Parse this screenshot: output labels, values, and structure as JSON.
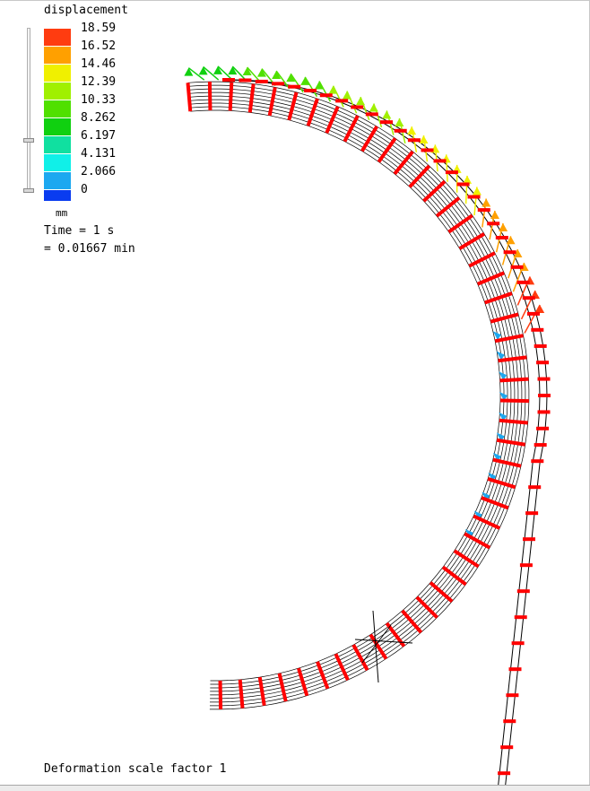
{
  "legend": {
    "title": "displacement",
    "unit": "mm",
    "entries": [
      {
        "label": "18.59",
        "color": "#ff3c10"
      },
      {
        "label": "16.52",
        "color": "#ffa000"
      },
      {
        "label": "14.46",
        "color": "#f0f000"
      },
      {
        "label": "12.39",
        "color": "#a0f000"
      },
      {
        "label": "10.33",
        "color": "#50e000"
      },
      {
        "label": "8.262",
        "color": "#10d010"
      },
      {
        "label": "6.197",
        "color": "#10e0a0"
      },
      {
        "label": "4.131",
        "color": "#10f0e8"
      },
      {
        "label": "2.066",
        "color": "#1ca8f0"
      },
      {
        "label": "0",
        "color": "#0a3cf0"
      }
    ]
  },
  "time": {
    "line1": "Time = 1 s",
    "line2": "= 0.01667 min"
  },
  "footer": {
    "scale_factor": "Deformation scale factor 1"
  },
  "model_colors": {
    "mesh": "#000000",
    "node_marker": "#ff0000",
    "axis_triad": "#000000"
  }
}
